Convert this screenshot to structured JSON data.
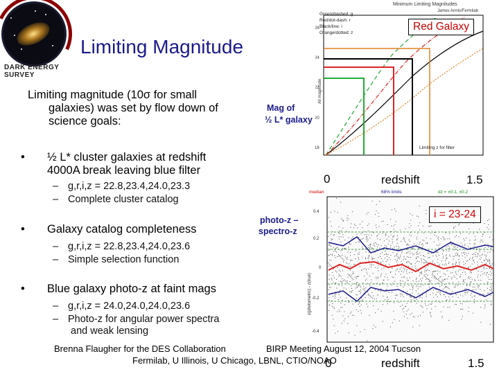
{
  "logo": {
    "text_line1": "DARK ENERGY",
    "text_line2": "SURVEY"
  },
  "title": "Limiting Magnitude",
  "intro": {
    "line1": "Limiting magnitude (10σ for small",
    "line2": "galaxies) was set by flow down of",
    "line3": "science goals:"
  },
  "bullets": [
    {
      "marker": "•",
      "lines": [
        "½ L* cluster galaxies at redshift",
        "4000A break leaving blue filter"
      ],
      "subs": [
        {
          "dash": "–",
          "text": "g,r,i,z = 22.8,23.4,24.0,23.3"
        },
        {
          "dash": "–",
          "text": "Complete cluster catalog"
        }
      ]
    },
    {
      "marker": "•",
      "lines": [
        "Galaxy catalog completeness"
      ],
      "subs": [
        {
          "dash": "–",
          "text": "g,r,i,z = 22.8,23.4,24.0,23.6"
        },
        {
          "dash": "–",
          "text": "Simple selection function"
        }
      ]
    },
    {
      "marker": "•",
      "lines": [
        "Blue galaxy photo-z at faint mags"
      ],
      "subs": [
        {
          "dash": "–",
          "text": "g,r,i,z = 24.0,24.0,24.0,23.6"
        },
        {
          "dash": "–",
          "text": "Photo-z for angular power spectra",
          "cont": "and weak lensing"
        }
      ]
    }
  ],
  "top_plot": {
    "header": "Minimum Limiting Magnitudes",
    "author": "James Annis/Fermilab",
    "legend": [
      "Green/dashed: g",
      "Red/dot-dash: r",
      "Black/line: i",
      "Orange/dotted: z"
    ],
    "y_ticks": [
      "26",
      "24",
      "22",
      "20",
      "18"
    ],
    "y_label": "All magnitude",
    "caption": "Limiting z for filter",
    "left_label_1": "Mag  of",
    "left_label_2": "½ L* galaxy",
    "callout": "Red Galaxy",
    "x_left": "0",
    "x_mid": "redshift",
    "x_right": "1.5",
    "colors": {
      "green": "#22aa33",
      "red": "#dd2222",
      "black": "#000000",
      "orange": "#e08020"
    }
  },
  "bottom_plot": {
    "hdr_left": "median",
    "hdr_mid": "68% limits",
    "hdr_right": "dz = ±0.1, ±0.2",
    "y_ticks": [
      "0.4",
      "0.2",
      "0",
      "-0.2",
      "-0.4"
    ],
    "y_label": "z(photometric) - z(true)",
    "left_label_1": "photo-z –",
    "left_label_2": "spectro-z",
    "callout": "i = 23-24",
    "x_left": "0",
    "x_mid": "redshift",
    "x_right": "1.5"
  },
  "footer": {
    "left": "Brenna Flaugher for the DES Collaboration",
    "right": "BIRP Meeting August 12, 2004 Tucson",
    "line2": "Fermilab, U Illinois, U Chicago, LBNL, CTIO/NOAO"
  }
}
